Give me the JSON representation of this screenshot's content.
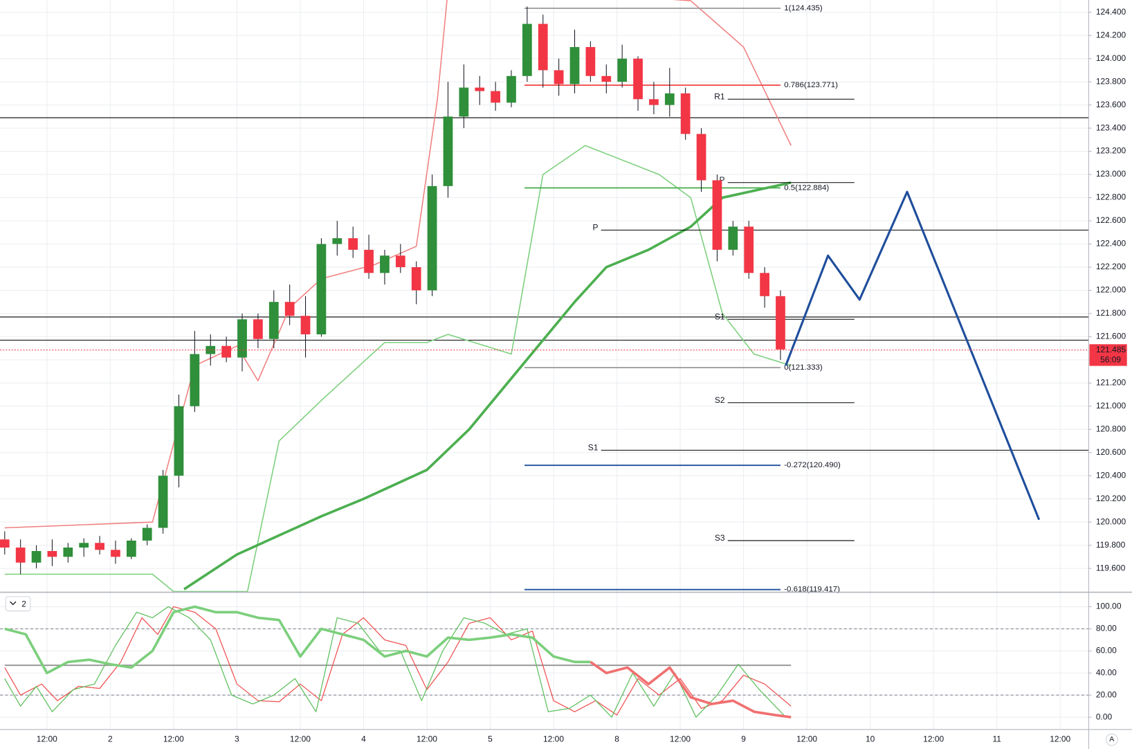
{
  "chart_data": {
    "type": "candlestick",
    "x": [
      0,
      3,
      6,
      9,
      12,
      15,
      18,
      21,
      24,
      27,
      30,
      33,
      36,
      39,
      42,
      45,
      48,
      51,
      54,
      57,
      60,
      63,
      66,
      69,
      72,
      75,
      78,
      81,
      84,
      87,
      90,
      93,
      96,
      99,
      102,
      105,
      108,
      111,
      114,
      117,
      120,
      123,
      126,
      129,
      132,
      135,
      138,
      141,
      144,
      147
    ],
    "open": [
      119.85,
      119.78,
      119.65,
      119.75,
      119.7,
      119.78,
      119.82,
      119.76,
      119.7,
      119.84,
      119.95,
      120.4,
      121.0,
      121.45,
      121.52,
      121.42,
      121.75,
      121.58,
      121.9,
      121.78,
      121.62,
      122.4,
      122.45,
      122.35,
      122.15,
      122.3,
      122.2,
      122.0,
      122.9,
      123.5,
      123.75,
      123.72,
      123.62,
      123.85,
      124.3,
      123.9,
      123.78,
      124.1,
      123.85,
      123.8,
      124.0,
      123.65,
      123.6,
      123.7,
      123.35,
      122.95,
      122.35,
      122.55,
      122.15,
      121.95
    ],
    "high": [
      119.92,
      119.85,
      119.8,
      119.85,
      119.82,
      119.86,
      119.88,
      119.84,
      119.86,
      119.98,
      120.45,
      121.1,
      121.65,
      121.62,
      121.6,
      121.8,
      121.8,
      122.0,
      122.05,
      121.95,
      122.45,
      122.6,
      122.55,
      122.48,
      122.35,
      122.4,
      122.25,
      123.0,
      123.8,
      123.95,
      123.85,
      123.8,
      123.9,
      124.45,
      124.38,
      124.0,
      124.25,
      124.15,
      123.95,
      124.12,
      124.02,
      123.8,
      123.92,
      123.75,
      123.4,
      123.0,
      122.6,
      122.6,
      122.2,
      122.0
    ],
    "low": [
      119.72,
      119.55,
      119.6,
      119.62,
      119.65,
      119.7,
      119.72,
      119.64,
      119.68,
      119.8,
      119.9,
      120.3,
      120.95,
      121.35,
      121.38,
      121.3,
      121.5,
      121.5,
      121.7,
      121.42,
      121.6,
      122.3,
      122.28,
      122.1,
      122.05,
      122.15,
      121.88,
      121.95,
      122.8,
      123.4,
      123.6,
      123.55,
      123.58,
      123.8,
      123.75,
      123.68,
      123.7,
      123.8,
      123.7,
      123.75,
      123.55,
      123.52,
      123.5,
      123.3,
      122.85,
      122.25,
      122.3,
      122.1,
      121.85,
      121.4
    ],
    "close": [
      119.78,
      119.65,
      119.75,
      119.7,
      119.78,
      119.82,
      119.76,
      119.7,
      119.84,
      119.95,
      120.4,
      121.0,
      121.45,
      121.52,
      121.42,
      121.75,
      121.58,
      121.9,
      121.78,
      121.62,
      122.4,
      122.45,
      122.35,
      122.15,
      122.3,
      122.2,
      122.0,
      122.9,
      123.5,
      123.75,
      123.72,
      123.62,
      123.85,
      124.3,
      123.9,
      123.78,
      124.1,
      123.85,
      123.8,
      124.0,
      123.65,
      123.6,
      123.7,
      123.35,
      122.95,
      122.35,
      122.55,
      122.15,
      121.95,
      121.49
    ],
    "up_color": "#2f8f3a",
    "down_color": "#f23645",
    "xlim": [
      -0.89,
      205.4
    ],
    "xticks": [
      {
        "value": 8,
        "label": "12:00"
      },
      {
        "value": 20,
        "label": "2"
      },
      {
        "value": 32,
        "label": "12:00"
      },
      {
        "value": 44,
        "label": "3"
      },
      {
        "value": 56,
        "label": "12:00"
      },
      {
        "value": 68,
        "label": "4"
      },
      {
        "value": 80,
        "label": "12:00"
      },
      {
        "value": 92,
        "label": "5"
      },
      {
        "value": 104,
        "label": "12:00"
      },
      {
        "value": 116,
        "label": "8"
      },
      {
        "value": 128,
        "label": "12:00"
      },
      {
        "value": 140,
        "label": "9"
      },
      {
        "value": 152,
        "label": "12:00"
      },
      {
        "value": 164,
        "label": "10"
      },
      {
        "value": 176,
        "label": "12:00"
      },
      {
        "value": 188,
        "label": "11"
      },
      {
        "value": 200,
        "label": "12:00"
      }
    ],
    "ylim": [
      119.394,
      124.506
    ],
    "yticks": [
      {
        "value": 124.4,
        "label": "124.400"
      },
      {
        "value": 124.2,
        "label": "124.200"
      },
      {
        "value": 124.0,
        "label": "124.000"
      },
      {
        "value": 123.8,
        "label": "123.800"
      },
      {
        "value": 123.6,
        "label": "123.600"
      },
      {
        "value": 123.4,
        "label": "123.400"
      },
      {
        "value": 123.2,
        "label": "123.200"
      },
      {
        "value": 123.0,
        "label": "123.000"
      },
      {
        "value": 122.8,
        "label": "122.800"
      },
      {
        "value": 122.6,
        "label": "122.600"
      },
      {
        "value": 122.4,
        "label": "122.400"
      },
      {
        "value": 122.2,
        "label": "122.200"
      },
      {
        "value": 122.0,
        "label": "122.000"
      },
      {
        "value": 121.8,
        "label": "121.800"
      },
      {
        "value": 121.6,
        "label": "121.600"
      },
      {
        "value": 121.4,
        "label": "121.400"
      },
      {
        "value": 121.2,
        "label": "121.200"
      },
      {
        "value": 121.0,
        "label": "121.000"
      },
      {
        "value": 120.8,
        "label": "120.800"
      },
      {
        "value": 120.6,
        "label": "120.600"
      },
      {
        "value": 120.4,
        "label": "120.400"
      },
      {
        "value": 120.2,
        "label": "120.200"
      },
      {
        "value": 120.0,
        "label": "120.000"
      },
      {
        "value": 119.8,
        "label": "119.800"
      },
      {
        "value": 119.6,
        "label": "119.600"
      }
    ],
    "grid": true,
    "overlays": [
      {
        "x": [
          0,
          28,
          36,
          44,
          48,
          54,
          60,
          70,
          78,
          82,
          84,
          98,
          130,
          140,
          149
        ],
        "values": [
          119.95,
          120.0,
          121.35,
          121.52,
          121.22,
          121.85,
          122.1,
          122.22,
          122.38,
          123.65,
          124.6,
          124.6,
          124.5,
          124.1,
          123.25
        ],
        "color": "#f08080",
        "width": 1.5
      },
      {
        "x": [
          0,
          28,
          32,
          46,
          52,
          60,
          72,
          80,
          84,
          96,
          102,
          110,
          124,
          130,
          136,
          142,
          149
        ],
        "values": [
          119.55,
          119.55,
          119.4,
          119.4,
          120.7,
          121.05,
          121.55,
          121.55,
          121.62,
          121.45,
          123.0,
          123.25,
          123.0,
          122.8,
          121.8,
          121.45,
          121.35
        ],
        "color": "#7ccf7c",
        "width": 1.5
      },
      {
        "x": [
          34,
          44,
          60,
          68,
          80,
          88,
          98,
          108,
          114,
          122,
          130,
          136,
          149
        ],
        "values": [
          119.42,
          119.72,
          120.05,
          120.2,
          120.45,
          120.8,
          121.35,
          121.9,
          122.2,
          122.35,
          122.55,
          122.8,
          122.93
        ],
        "color": "#4caf50",
        "width": 3.5
      }
    ],
    "hlines": [
      {
        "value": 123.49,
        "color": "#000000"
      },
      {
        "value": 121.77,
        "color": "#000000"
      },
      {
        "value": 121.57,
        "color": "#000000"
      }
    ],
    "fib": {
      "span": [
        98.5,
        147
      ],
      "levels": [
        {
          "value": 124.435,
          "label": "1(124.435)",
          "color": "#9e9e9e"
        },
        {
          "value": 123.771,
          "label": "0.786(123.771)",
          "color": "#f05050"
        },
        {
          "value": 122.884,
          "label": "0.5(122.884)",
          "color": "#4caf50"
        },
        {
          "value": 121.333,
          "label": "0(121.333)",
          "color": "#9e9e9e"
        },
        {
          "value": 120.49,
          "label": "-0.272(120.490)",
          "color": "#1f4e9c"
        },
        {
          "value": 119.417,
          "label": "-0.618(119.417)",
          "color": "#1f4e9c"
        }
      ]
    },
    "pivots_short": {
      "span": [
        137,
        161
      ],
      "levels": [
        {
          "value": 123.65,
          "label": "R1"
        },
        {
          "value": 122.93,
          "label": "P"
        },
        {
          "value": 121.75,
          "label": "S1"
        },
        {
          "value": 121.03,
          "label": "S2"
        },
        {
          "value": 119.84,
          "label": "S3"
        }
      ]
    },
    "pivots_long": {
      "span": [
        113,
        205.4
      ],
      "levels": [
        {
          "value": 122.52,
          "label": "P"
        },
        {
          "value": 120.62,
          "label": "S1"
        }
      ]
    },
    "forecast": {
      "x": [
        148,
        156,
        162,
        171,
        196
      ],
      "values": [
        121.35,
        122.3,
        121.92,
        122.85,
        120.02
      ],
      "color": "#1f4e9c"
    },
    "current_price": {
      "value": 121.485,
      "label": "121.485",
      "countdown": "56:09",
      "color": "#f23645"
    },
    "oscillator": {
      "type": "line",
      "pane_label": "2",
      "ylim": [
        -11.1,
        113.07
      ],
      "yticks": [
        {
          "value": 100,
          "label": "100.00"
        },
        {
          "value": 80,
          "label": "80.00"
        },
        {
          "value": 60,
          "label": "60.00"
        },
        {
          "value": 40,
          "label": "40.00"
        },
        {
          "value": 20,
          "label": "20.00"
        },
        {
          "value": 0,
          "label": "0.00"
        }
      ],
      "dashed_levels": [
        80,
        20
      ],
      "midline": 47,
      "series": [
        {
          "x": [
            0,
            3,
            7,
            10,
            14,
            18,
            22,
            26,
            29,
            32,
            36,
            40,
            44,
            48,
            52,
            56,
            60,
            64,
            68,
            72,
            76,
            80,
            84,
            88,
            92,
            96,
            100,
            104,
            108,
            112,
            116,
            120,
            124,
            128,
            132,
            136,
            140,
            144,
            149
          ],
          "values": [
            45,
            20,
            30,
            15,
            28,
            26,
            50,
            90,
            75,
            100,
            95,
            80,
            30,
            15,
            14,
            30,
            15,
            75,
            90,
            70,
            65,
            25,
            50,
            85,
            90,
            70,
            78,
            15,
            5,
            15,
            2,
            35,
            20,
            35,
            8,
            15,
            38,
            30,
            10
          ],
          "color": "#f05050",
          "width": 1.2
        },
        {
          "x": [
            0,
            3,
            6,
            9,
            13,
            17,
            21,
            25,
            28,
            31,
            35,
            39,
            43,
            47,
            51,
            55,
            59,
            63,
            67,
            71,
            75,
            79,
            83,
            87,
            91,
            95,
            99,
            103,
            107,
            111,
            115,
            119,
            123,
            127,
            131,
            135,
            139,
            143,
            148
          ],
          "values": [
            35,
            10,
            28,
            5,
            25,
            30,
            65,
            95,
            90,
            100,
            90,
            70,
            20,
            12,
            20,
            35,
            5,
            90,
            85,
            60,
            60,
            15,
            60,
            90,
            85,
            75,
            80,
            5,
            8,
            20,
            0,
            40,
            10,
            40,
            0,
            20,
            48,
            25,
            0
          ],
          "color": "#5cbf5c",
          "width": 1.2
        },
        {
          "x": [
            0,
            4,
            8,
            12,
            16,
            20,
            24,
            28,
            32,
            36,
            40,
            44,
            48,
            52,
            56,
            60,
            64,
            68,
            72,
            76,
            80,
            84,
            88,
            92,
            96,
            100,
            104,
            108,
            111
          ],
          "values": [
            80,
            75,
            40,
            50,
            52,
            48,
            45,
            60,
            95,
            100,
            95,
            95,
            90,
            88,
            55,
            80,
            75,
            70,
            55,
            60,
            55,
            72,
            70,
            72,
            75,
            72,
            55,
            50,
            50
          ],
          "color": "#7ccf7c",
          "width": 3.5
        },
        {
          "x": [
            111,
            114,
            118,
            122,
            126,
            130,
            134,
            138,
            142,
            146,
            149
          ],
          "values": [
            50,
            40,
            45,
            30,
            45,
            18,
            12,
            15,
            5,
            2,
            0
          ],
          "color": "#f07070",
          "width": 3.5
        }
      ]
    },
    "auto_button": "A"
  }
}
